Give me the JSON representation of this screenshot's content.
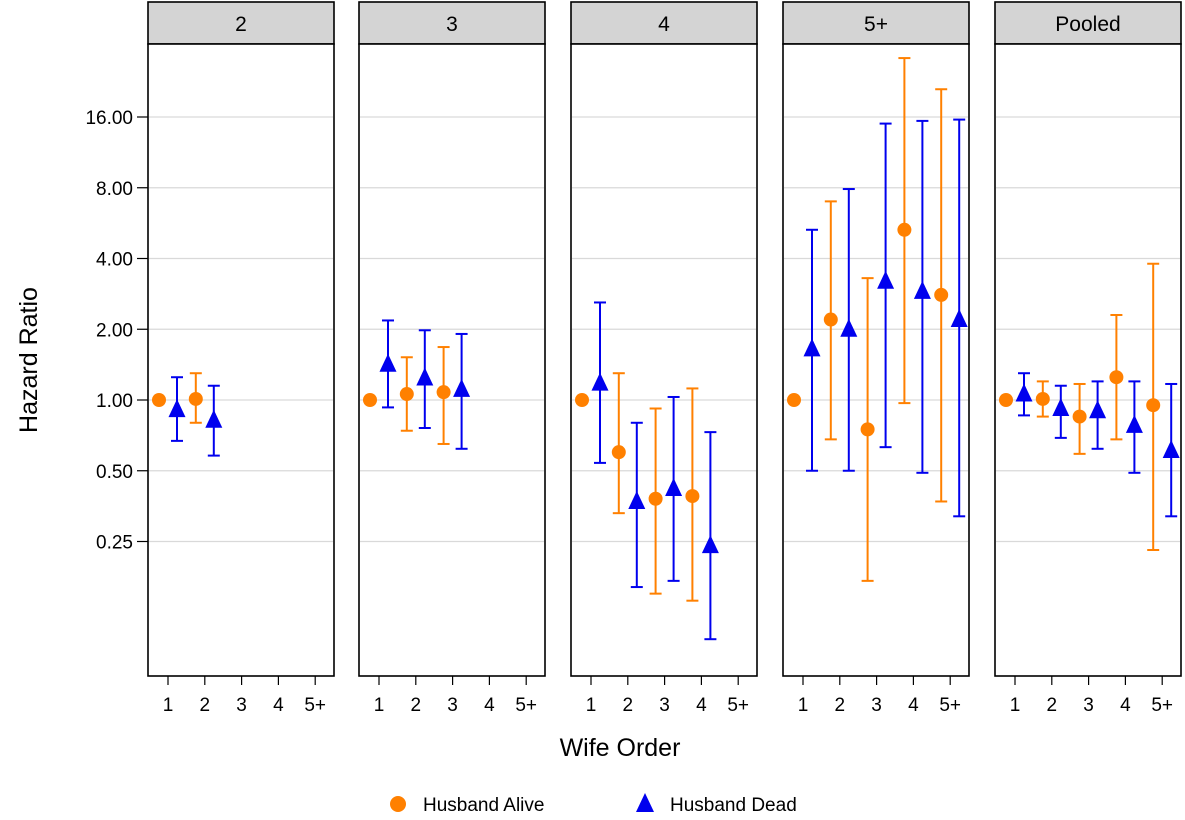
{
  "chart_data": {
    "type": "scatter",
    "subtype": "faceted point-range (dodged, log y axis)",
    "ylabel": "Hazard Ratio",
    "xlabel": "Wife Order",
    "y_scale": "log2",
    "ylim": [
      0.088,
      32
    ],
    "y_ticks": [
      0.25,
      0.5,
      1,
      2,
      4,
      8,
      16
    ],
    "y_tick_labels": [
      "0.25",
      "0.50",
      "1.00",
      "2.00",
      "4.00",
      "8.00",
      "16.00"
    ],
    "x_categories": [
      "1",
      "2",
      "3",
      "4",
      "5+"
    ],
    "grid": "horizontal major",
    "legend_position": "bottom",
    "series_styles": [
      {
        "name": "Husband Alive",
        "color": "#ff8000",
        "marker": "circle"
      },
      {
        "name": "Husband Dead",
        "color": "#0000ee",
        "marker": "triangle"
      }
    ],
    "panels": [
      {
        "title": "2",
        "series": [
          {
            "name": "Husband Alive",
            "points": [
              {
                "x": "1",
                "y": 1.0,
                "lo": null,
                "hi": null
              },
              {
                "x": "2",
                "y": 1.01,
                "lo": 0.8,
                "hi": 1.3
              }
            ]
          },
          {
            "name": "Husband Dead",
            "points": [
              {
                "x": "1",
                "y": 0.91,
                "lo": 0.67,
                "hi": 1.25
              },
              {
                "x": "2",
                "y": 0.82,
                "lo": 0.58,
                "hi": 1.15
              }
            ]
          }
        ]
      },
      {
        "title": "3",
        "series": [
          {
            "name": "Husband Alive",
            "points": [
              {
                "x": "1",
                "y": 1.0,
                "lo": null,
                "hi": null
              },
              {
                "x": "2",
                "y": 1.06,
                "lo": 0.74,
                "hi": 1.52
              },
              {
                "x": "3",
                "y": 1.08,
                "lo": 0.65,
                "hi": 1.68
              }
            ]
          },
          {
            "name": "Husband Dead",
            "points": [
              {
                "x": "1",
                "y": 1.42,
                "lo": 0.93,
                "hi": 2.18
              },
              {
                "x": "2",
                "y": 1.24,
                "lo": 0.76,
                "hi": 1.98
              },
              {
                "x": "3",
                "y": 1.11,
                "lo": 0.62,
                "hi": 1.91
              }
            ]
          }
        ]
      },
      {
        "title": "4",
        "series": [
          {
            "name": "Husband Alive",
            "points": [
              {
                "x": "1",
                "y": 1.0,
                "lo": null,
                "hi": null
              },
              {
                "x": "2",
                "y": 0.6,
                "lo": 0.33,
                "hi": 1.3
              },
              {
                "x": "3",
                "y": 0.38,
                "lo": 0.15,
                "hi": 0.92
              },
              {
                "x": "4",
                "y": 0.39,
                "lo": 0.14,
                "hi": 1.12
              }
            ]
          },
          {
            "name": "Husband Dead",
            "points": [
              {
                "x": "1",
                "y": 1.18,
                "lo": 0.54,
                "hi": 2.6
              },
              {
                "x": "2",
                "y": 0.37,
                "lo": 0.16,
                "hi": 0.8
              },
              {
                "x": "3",
                "y": 0.42,
                "lo": 0.17,
                "hi": 1.03
              },
              {
                "x": "4",
                "y": 0.24,
                "lo": 0.096,
                "hi": 0.73
              }
            ]
          }
        ]
      },
      {
        "title": "5+",
        "series": [
          {
            "name": "Husband Alive",
            "points": [
              {
                "x": "1",
                "y": 1.0,
                "lo": null,
                "hi": null
              },
              {
                "x": "2",
                "y": 2.2,
                "lo": 0.68,
                "hi": 7.0
              },
              {
                "x": "3",
                "y": 0.75,
                "lo": 0.17,
                "hi": 3.3
              },
              {
                "x": "4",
                "y": 5.3,
                "lo": 0.97,
                "hi": 28.5
              },
              {
                "x": "5+",
                "y": 2.8,
                "lo": 0.37,
                "hi": 21.0
              }
            ]
          },
          {
            "name": "Husband Dead",
            "points": [
              {
                "x": "1",
                "y": 1.65,
                "lo": 0.5,
                "hi": 5.3
              },
              {
                "x": "2",
                "y": 2.0,
                "lo": 0.5,
                "hi": 7.9
              },
              {
                "x": "3",
                "y": 3.2,
                "lo": 0.63,
                "hi": 15.0
              },
              {
                "x": "4",
                "y": 2.9,
                "lo": 0.49,
                "hi": 15.4
              },
              {
                "x": "5+",
                "y": 2.2,
                "lo": 0.32,
                "hi": 15.6
              }
            ]
          }
        ]
      },
      {
        "title": "Pooled",
        "series": [
          {
            "name": "Husband Alive",
            "points": [
              {
                "x": "1",
                "y": 1.0,
                "lo": null,
                "hi": null
              },
              {
                "x": "2",
                "y": 1.01,
                "lo": 0.85,
                "hi": 1.2
              },
              {
                "x": "3",
                "y": 0.85,
                "lo": 0.59,
                "hi": 1.17
              },
              {
                "x": "4",
                "y": 1.25,
                "lo": 0.68,
                "hi": 2.3
              },
              {
                "x": "5+",
                "y": 0.95,
                "lo": 0.23,
                "hi": 3.8
              }
            ]
          },
          {
            "name": "Husband Dead",
            "points": [
              {
                "x": "1",
                "y": 1.06,
                "lo": 0.86,
                "hi": 1.3
              },
              {
                "x": "2",
                "y": 0.92,
                "lo": 0.69,
                "hi": 1.15
              },
              {
                "x": "3",
                "y": 0.9,
                "lo": 0.62,
                "hi": 1.2
              },
              {
                "x": "4",
                "y": 0.78,
                "lo": 0.49,
                "hi": 1.2
              },
              {
                "x": "5+",
                "y": 0.61,
                "lo": 0.32,
                "hi": 1.17
              }
            ]
          }
        ]
      }
    ]
  }
}
